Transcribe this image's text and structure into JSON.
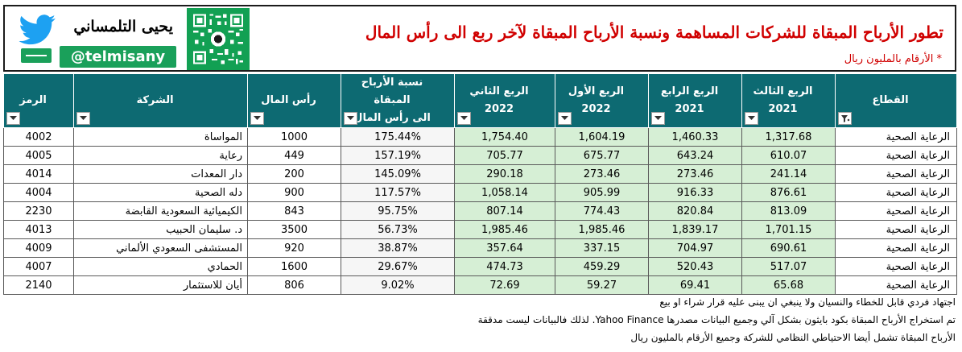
{
  "header": {
    "title": "تطور الأرباح المبقاة للشركات المساهمة ونسبة الأرباح المبقاة لآخر ربع الى رأس المال",
    "note": "* الأرقام بالمليون ريال"
  },
  "brand": {
    "name": "يحيى التلمساني",
    "handle": "@telmisany",
    "accent_color": "#1aa05a",
    "icon": "twitter-bird-icon"
  },
  "qr": {
    "icon": "qr-code-icon",
    "color": "#12a053"
  },
  "table": {
    "header_color": "#0d6a72",
    "green_cell_color": "#d6efd5",
    "columns": [
      {
        "label": "القطاع",
        "line2": "",
        "filter": "filter-active-icon"
      },
      {
        "label": "الربع الثالث",
        "line2": "2021",
        "filter": "dropdown-icon"
      },
      {
        "label": "الربع الرابع",
        "line2": "2021",
        "filter": "dropdown-icon"
      },
      {
        "label": "الربع الأول",
        "line2": "2022",
        "filter": "dropdown-icon"
      },
      {
        "label": "الربع الثاني",
        "line2": "2022",
        "filter": "dropdown-icon"
      },
      {
        "label": "نسبة الأرباح المبقاة",
        "line2": "الى رأس المال",
        "filter": "dropdown-icon"
      },
      {
        "label": "رأس المال",
        "line2": "",
        "filter": "dropdown-icon"
      },
      {
        "label": "الشركة",
        "line2": "",
        "filter": "dropdown-icon"
      },
      {
        "label": "الرمز",
        "line2": "",
        "filter": "dropdown-icon"
      }
    ],
    "rows": [
      {
        "sector": "الرعاية الصحية",
        "q3_2021": "1,317.68",
        "q4_2021": "1,460.33",
        "q1_2022": "1,604.19",
        "q2_2022": "1,754.40",
        "ratio": "175.44%",
        "capital": "1000",
        "company": "المواساة",
        "code": "4002"
      },
      {
        "sector": "الرعاية الصحية",
        "q3_2021": "610.07",
        "q4_2021": "643.24",
        "q1_2022": "675.77",
        "q2_2022": "705.77",
        "ratio": "157.19%",
        "capital": "449",
        "company": "رعاية",
        "code": "4005"
      },
      {
        "sector": "الرعاية الصحية",
        "q3_2021": "241.14",
        "q4_2021": "273.46",
        "q1_2022": "273.46",
        "q2_2022": "290.18",
        "ratio": "145.09%",
        "capital": "200",
        "company": "دار المعدات",
        "code": "4014"
      },
      {
        "sector": "الرعاية الصحية",
        "q3_2021": "876.61",
        "q4_2021": "916.33",
        "q1_2022": "905.99",
        "q2_2022": "1,058.14",
        "ratio": "117.57%",
        "capital": "900",
        "company": "دله الصحية",
        "code": "4004"
      },
      {
        "sector": "الرعاية الصحية",
        "q3_2021": "813.09",
        "q4_2021": "820.84",
        "q1_2022": "774.43",
        "q2_2022": "807.14",
        "ratio": "95.75%",
        "capital": "843",
        "company": "الكيميائية السعودية القابضة",
        "code": "2230"
      },
      {
        "sector": "الرعاية الصحية",
        "q3_2021": "1,701.15",
        "q4_2021": "1,839.17",
        "q1_2022": "1,985.46",
        "q2_2022": "1,985.46",
        "ratio": "56.73%",
        "capital": "3500",
        "company": "د. سليمان الحبيب",
        "code": "4013"
      },
      {
        "sector": "الرعاية الصحية",
        "q3_2021": "690.61",
        "q4_2021": "704.97",
        "q1_2022": "337.15",
        "q2_2022": "357.64",
        "ratio": "38.87%",
        "capital": "920",
        "company": "المستشفى السعودي الألماني",
        "code": "4009"
      },
      {
        "sector": "الرعاية الصحية",
        "q3_2021": "517.07",
        "q4_2021": "520.43",
        "q1_2022": "459.29",
        "q2_2022": "474.73",
        "ratio": "29.67%",
        "capital": "1600",
        "company": "الحمادي",
        "code": "4007"
      },
      {
        "sector": "الرعاية الصحية",
        "q3_2021": "65.68",
        "q4_2021": "69.41",
        "q1_2022": "59.27",
        "q2_2022": "72.69",
        "ratio": "9.02%",
        "capital": "806",
        "company": "أيان للاستثمار",
        "code": "2140"
      }
    ]
  },
  "footer": {
    "line1": "اجتهاد فردي قابل للخطاء والنسيان ولا ينبغي ان يبنى عليه قرار شراء او بيع",
    "line2": "تم استخراج الأرباح المبقاة بكود بايثون بشكل آلي وجميع البيانات مصدرها Yahoo Finance. لذلك فالبيانات ليست مدققة",
    "line3": "الأرباح المبقاة تشمل أيضا الاحتياطي النظامي للشركة وجميع الأرقام بالمليون ريال"
  }
}
